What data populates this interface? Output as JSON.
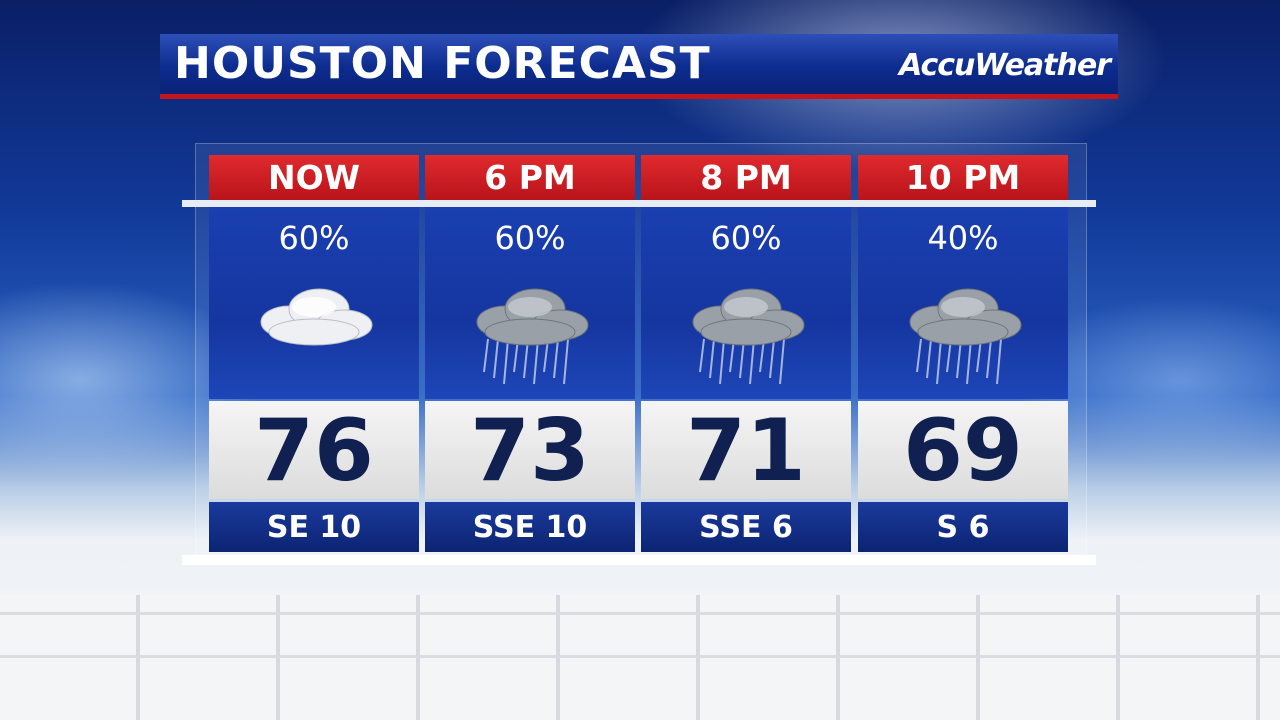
{
  "header": {
    "title": "HOUSTON FORECAST",
    "logo": "AccuWeather"
  },
  "colors": {
    "header_red": "#c4141c",
    "panel_blue": "#1536a0",
    "temp_text": "#102050"
  },
  "forecast": [
    {
      "time": "NOW",
      "precip": "60%",
      "icon": "cloudy-icon",
      "temp": "76",
      "wind": "SE 10"
    },
    {
      "time": "6 PM",
      "precip": "60%",
      "icon": "rain-cloud-icon",
      "temp": "73",
      "wind": "SSE 10"
    },
    {
      "time": "8 PM",
      "precip": "60%",
      "icon": "rain-cloud-icon",
      "temp": "71",
      "wind": "SSE 6"
    },
    {
      "time": "10 PM",
      "precip": "40%",
      "icon": "rain-cloud-icon",
      "temp": "69",
      "wind": "S 6"
    }
  ]
}
